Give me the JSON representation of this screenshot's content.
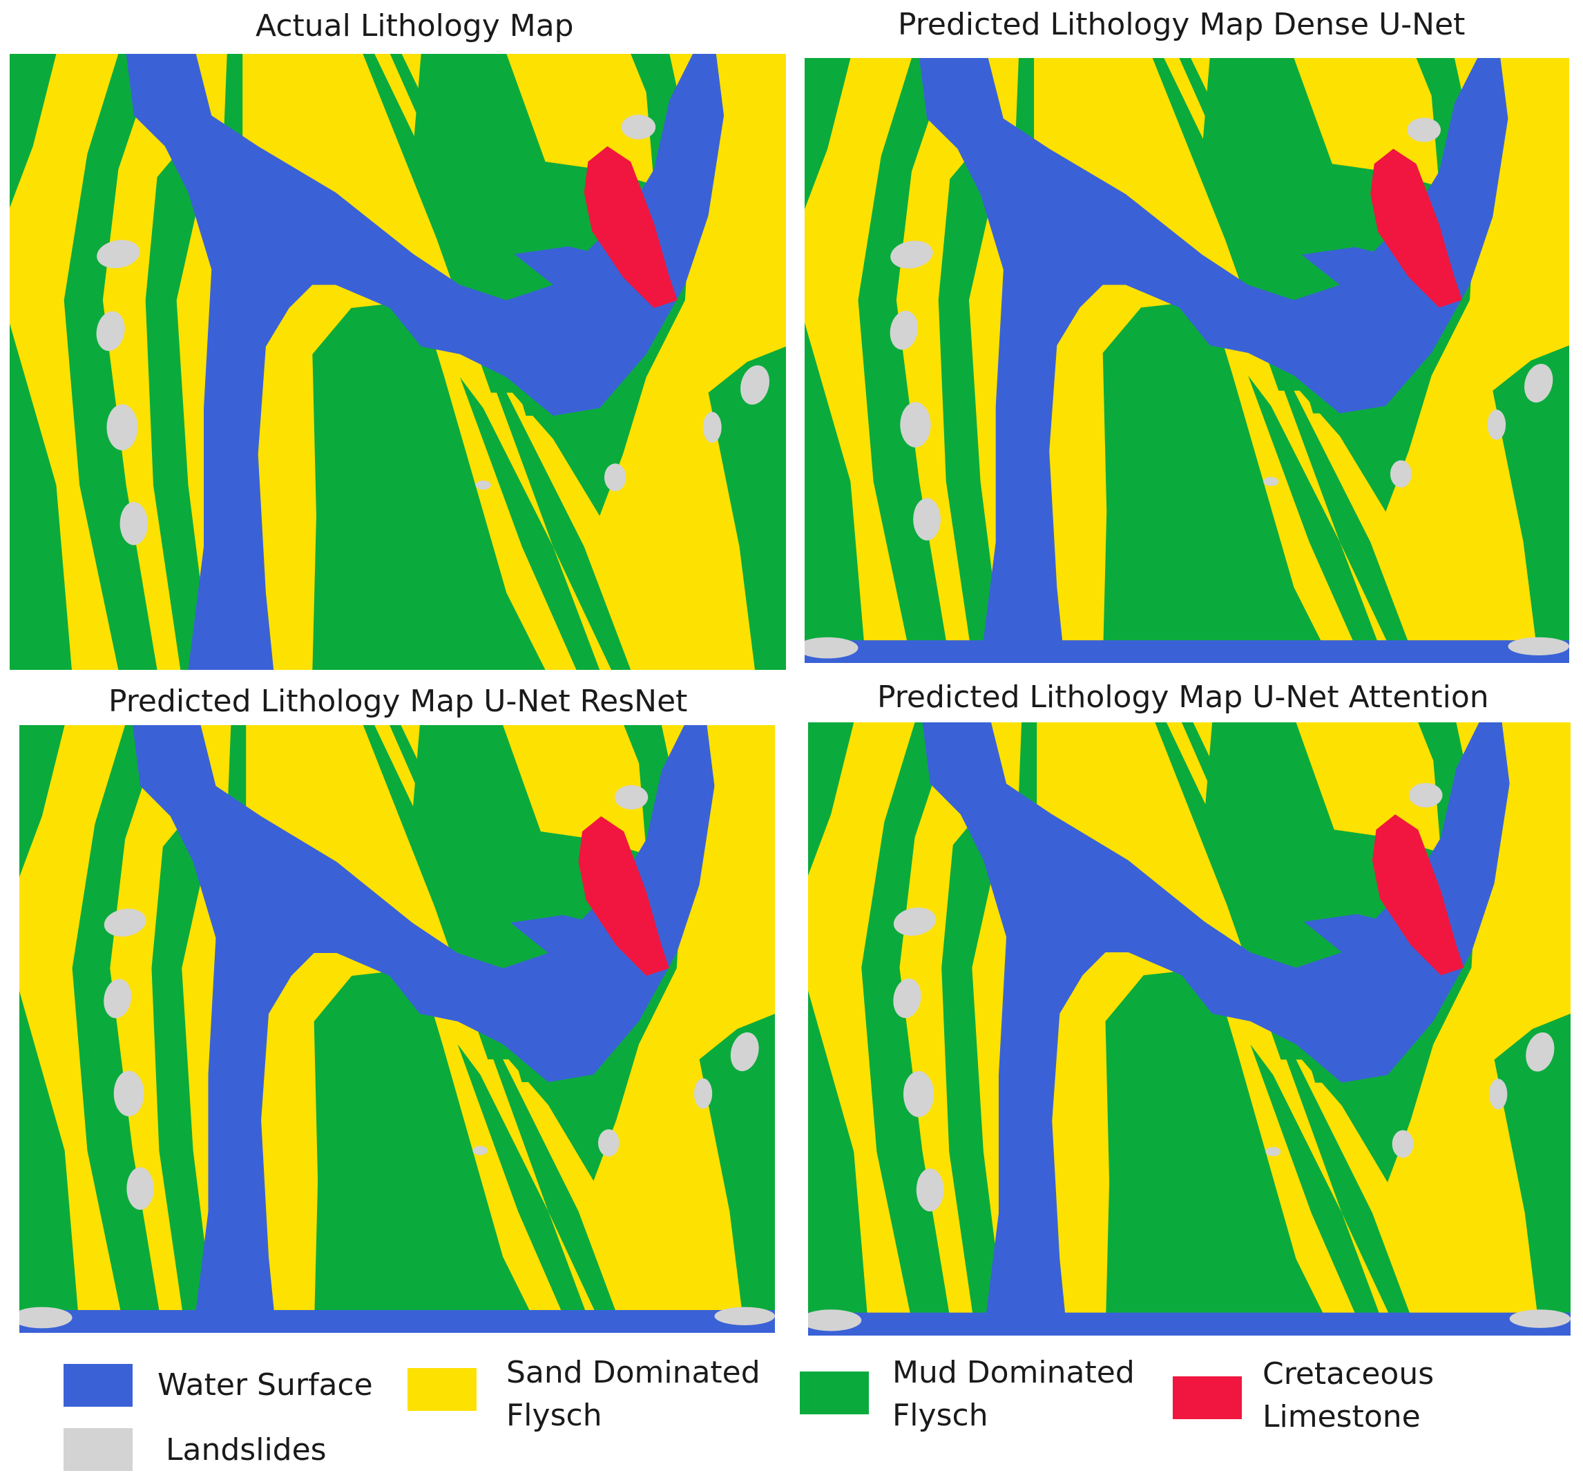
{
  "panels": [
    {
      "title": "Actual Lithology Map"
    },
    {
      "title": "Predicted Lithology Map Dense U-Net"
    },
    {
      "title": "Predicted Lithology Map U-Net ResNet"
    },
    {
      "title": "Predicted Lithology Map U-Net Attention"
    }
  ],
  "legend": [
    {
      "label_line1": "Water Surface",
      "label_line2": "",
      "color": "#3a62d6"
    },
    {
      "label_line1": "Sand Dominated",
      "label_line2": "Flysch",
      "color": "#fde100"
    },
    {
      "label_line1": "Mud Dominated",
      "label_line2": "Flysch",
      "color": "#0aab3c"
    },
    {
      "label_line1": "Cretaceous",
      "label_line2": "Limestone",
      "color": "#f0163f"
    },
    {
      "label_line1": "Landslides",
      "label_line2": "",
      "color": "#d3d3d3"
    }
  ],
  "map_colors": {
    "water": "#3a62d6",
    "sand": "#fde100",
    "mud": "#0aab3c",
    "limestone": "#f0163f",
    "landslide": "#d3d3d3"
  }
}
